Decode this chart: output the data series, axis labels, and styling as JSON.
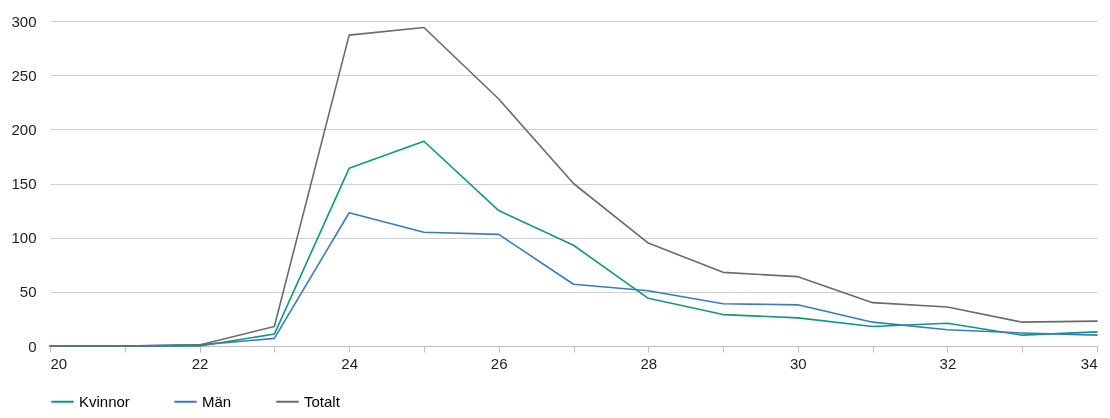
{
  "chart_data": {
    "type": "line",
    "x": [
      20,
      21,
      22,
      23,
      24,
      25,
      26,
      27,
      28,
      29,
      30,
      31,
      32,
      33,
      34
    ],
    "series": [
      {
        "name": "Kvinnor",
        "color": "#12977a",
        "values": [
          0,
          0,
          0,
          11,
          164,
          189,
          125,
          93,
          44,
          29,
          26,
          18,
          21,
          10,
          13
        ]
      },
      {
        "name": "Män",
        "color": "#3a7bc0",
        "values": [
          0,
          0,
          1,
          7,
          123,
          105,
          103,
          57,
          51,
          39,
          38,
          22,
          15,
          12,
          10
        ]
      },
      {
        "name": "Totalt",
        "color": "#6b6b6b",
        "values": [
          0,
          0,
          1,
          18,
          287,
          294,
          228,
          150,
          95,
          68,
          64,
          40,
          36,
          22,
          23
        ]
      }
    ],
    "xlim": [
      20,
      34
    ],
    "xticks": [
      20,
      {
        "value": 21,
        "label": null
      },
      22,
      {
        "value": 23,
        "label": null
      },
      24,
      {
        "value": 25,
        "label": null
      },
      26,
      {
        "value": 27,
        "label": null
      },
      28,
      {
        "value": 29,
        "label": null
      },
      30,
      {
        "value": 31,
        "label": null
      },
      32,
      {
        "value": 33,
        "label": null
      },
      34
    ],
    "ylim": [
      0,
      300
    ],
    "yticks": [
      0,
      50,
      100,
      150,
      200,
      250,
      300
    ],
    "grid": "y",
    "legend": "bottom",
    "marker": "none",
    "line_style": "solid"
  }
}
